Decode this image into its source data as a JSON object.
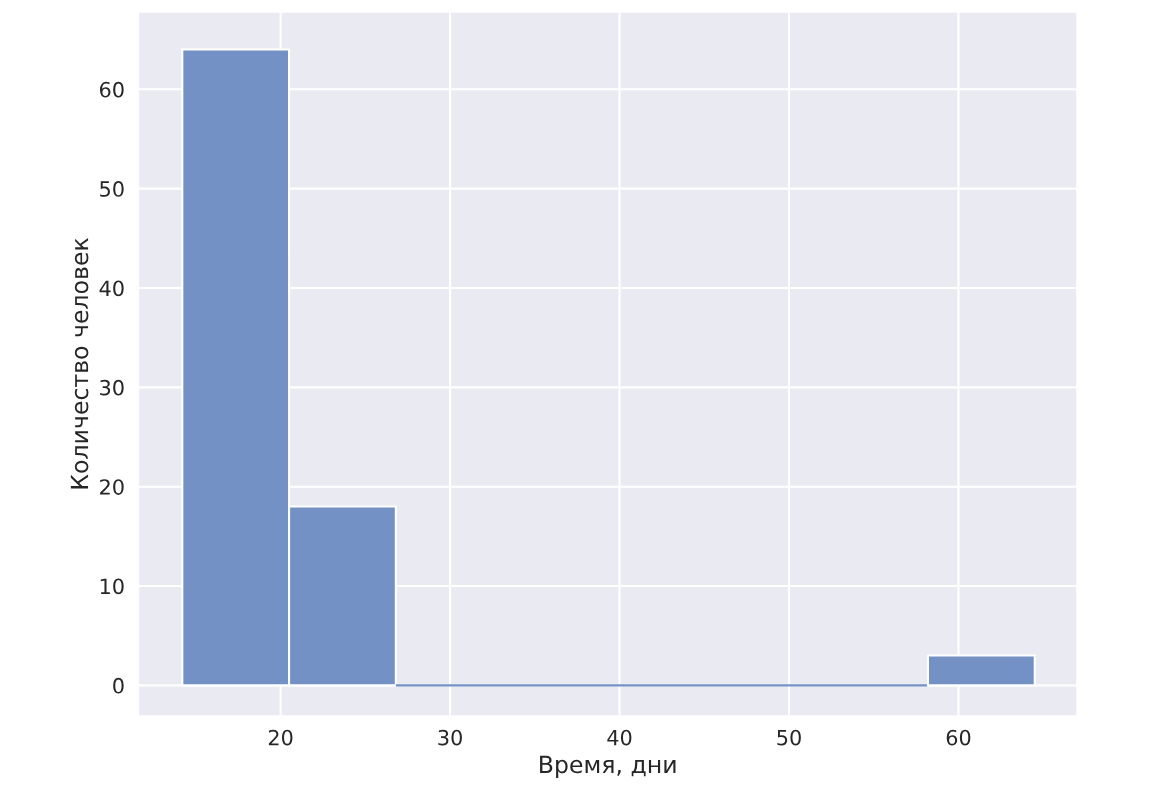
{
  "chart_data": {
    "type": "histogram",
    "xlabel": "Время, дни",
    "ylabel": "Количество человек",
    "bins": [
      14.2,
      20.5,
      26.8,
      58.2,
      64.5
    ],
    "values": [
      64,
      18,
      0,
      3
    ],
    "color": "#7391c5",
    "xlim": [
      11.6,
      67.0
    ],
    "ylim": [
      -3.1,
      67.8
    ],
    "xticks": [
      20,
      30,
      40,
      50,
      60
    ],
    "yticks": [
      0,
      10,
      20,
      30,
      40,
      50,
      60
    ],
    "grid": true
  }
}
